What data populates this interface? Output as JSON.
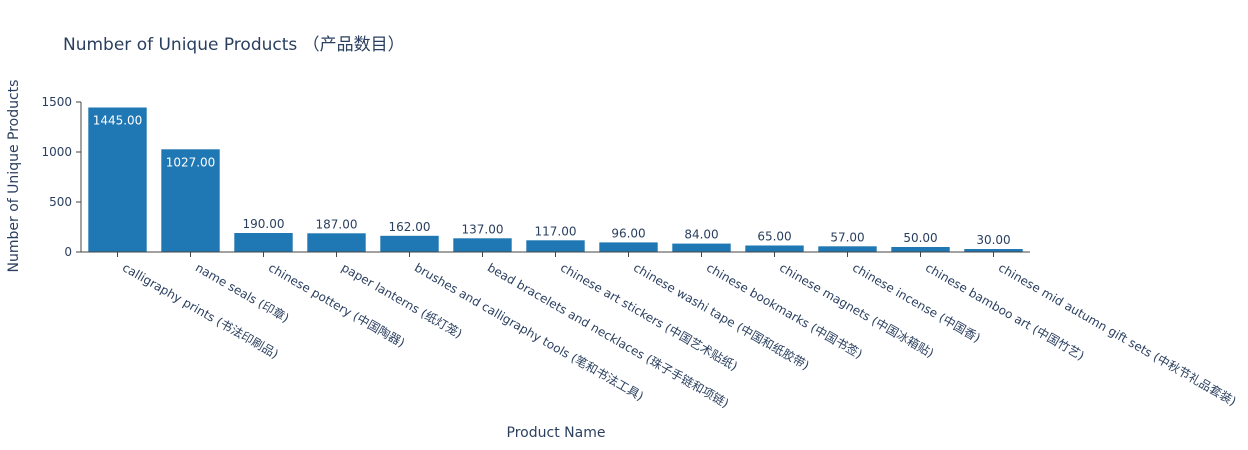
{
  "chart_data": {
    "type": "bar",
    "title": "Number of Unique Products （产品数目）",
    "xlabel": "Product Name",
    "ylabel": "Number of Unique Products",
    "ylim": [
      0,
      1500
    ],
    "yticks": [
      0,
      500,
      1000,
      1500
    ],
    "grid": false,
    "bar_color": "#1f77b4",
    "categories": [
      "calligraphy prints (书法印刷品)",
      "name seals (印章)",
      "chinese pottery (中国陶器)",
      "paper lanterns (纸灯笼)",
      "brushes and calligraphy tools (笔和书法工具)",
      "bead bracelets and necklaces (珠子手链和项链)",
      "chinese art stickers (中国艺术贴纸)",
      "chinese washi tape (中国和纸胶带)",
      "chinese bookmarks (中国书签)",
      "chinese magnets (中国冰箱贴)",
      "chinese incense (中国香)",
      "chinese bamboo art (中国竹艺)",
      "chinese mid autumn gift sets (中秋节礼品套装)"
    ],
    "values": [
      1445,
      1027,
      190,
      187,
      162,
      137,
      117,
      96,
      84,
      65,
      57,
      50,
      30
    ],
    "data_labels": [
      "1445.00",
      "1027.00",
      "190.00",
      "187.00",
      "162.00",
      "137.00",
      "117.00",
      "96.00",
      "84.00",
      "65.00",
      "57.00",
      "50.00",
      "30.00"
    ]
  }
}
